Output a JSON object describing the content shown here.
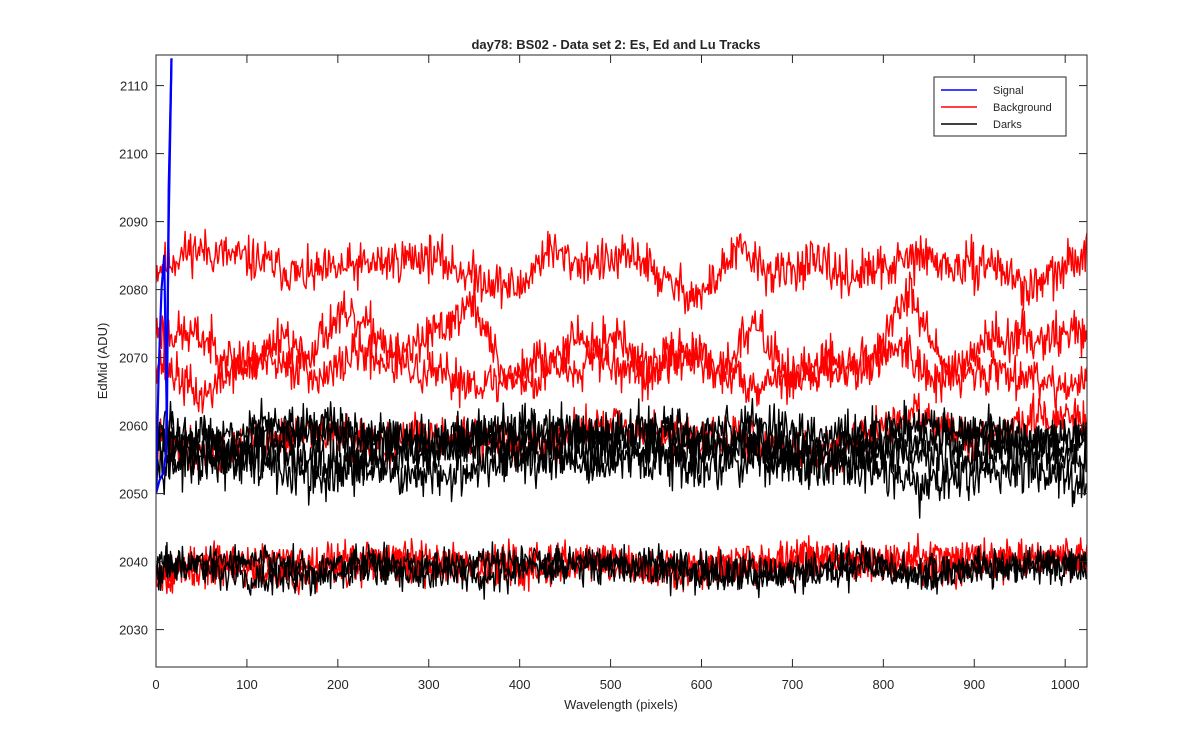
{
  "chart_data": {
    "type": "line",
    "title": "day78: BS02 - Data set 2: Es, Ed and Lu Tracks",
    "xlabel": "Wavelength (pixels)",
    "ylabel": "EdMid (ADU)",
    "xlim": [
      0,
      1024
    ],
    "ylim": [
      2024.5,
      2114.5
    ],
    "xticks": [
      0,
      100,
      200,
      300,
      400,
      500,
      600,
      700,
      800,
      900,
      1000
    ],
    "yticks": [
      2030,
      2040,
      2050,
      2060,
      2070,
      2080,
      2090,
      2100,
      2110
    ],
    "grid": false,
    "legend_position": "top-right",
    "legend": [
      {
        "label": "Signal",
        "color": "#0000ff"
      },
      {
        "label": "Background",
        "color": "#ff0000"
      },
      {
        "label": "Darks",
        "color": "#000000"
      }
    ],
    "series": [
      {
        "group": "Signal",
        "color": "#0000ff",
        "x": [
          0,
          3,
          6,
          9,
          12,
          14,
          17
        ],
        "y": [
          2051,
          2068,
          2080,
          2085,
          2060,
          2095,
          2114
        ]
      },
      {
        "group": "Signal",
        "color": "#0000ff",
        "x": [
          0,
          4,
          8,
          11,
          14,
          17
        ],
        "y": [
          2050,
          2052,
          2053,
          2056,
          2090,
          2114
        ]
      },
      {
        "group": "Background",
        "color": "#ff0000",
        "noise": 1.6,
        "seed": 11,
        "x": [
          0,
          40,
          80,
          120,
          160,
          200,
          250,
          300,
          350,
          400,
          430,
          460,
          500,
          530,
          560,
          600,
          640,
          680,
          720,
          760,
          800,
          840,
          880,
          920,
          960,
          1000,
          1024
        ],
        "y": [
          2083,
          2086,
          2085,
          2084,
          2082,
          2083,
          2084,
          2085,
          2082,
          2080,
          2086,
          2084,
          2084,
          2085,
          2081,
          2079,
          2086,
          2082,
          2084,
          2082,
          2083,
          2085,
          2083,
          2084,
          2080,
          2083,
          2086
        ]
      },
      {
        "group": "Background",
        "color": "#ff0000",
        "noise": 1.6,
        "seed": 23,
        "x": [
          0,
          50,
          100,
          140,
          180,
          220,
          260,
          300,
          350,
          380,
          420,
          460,
          500,
          540,
          580,
          620,
          660,
          700,
          740,
          780,
          830,
          870,
          920,
          970,
          1024
        ],
        "y": [
          2074,
          2073,
          2068,
          2074,
          2066,
          2071,
          2069,
          2073,
          2078,
          2068,
          2066,
          2074,
          2069,
          2067,
          2072,
          2068,
          2075,
          2066,
          2070,
          2068,
          2080,
          2068,
          2073,
          2073,
          2074
        ]
      },
      {
        "group": "Background",
        "color": "#ff0000",
        "noise": 1.6,
        "seed": 37,
        "x": [
          0,
          50,
          100,
          150,
          200,
          240,
          280,
          320,
          380,
          420,
          460,
          500,
          540,
          580,
          620,
          660,
          700,
          740,
          780,
          820,
          860,
          900,
          940,
          1000,
          1024
        ],
        "y": [
          2070,
          2064,
          2070,
          2068,
          2076,
          2074,
          2068,
          2067,
          2066,
          2070,
          2068,
          2074,
          2068,
          2070,
          2068,
          2066,
          2068,
          2068,
          2069,
          2072,
          2066,
          2068,
          2068,
          2066,
          2066
        ]
      },
      {
        "group": "Background",
        "color": "#ff0000",
        "noise": 1.5,
        "seed": 41,
        "x": [
          0,
          60,
          120,
          180,
          240,
          300,
          360,
          420,
          480,
          540,
          600,
          660,
          720,
          780,
          840,
          900,
          960,
          1024
        ],
        "y": [
          2058,
          2056,
          2058,
          2059,
          2057,
          2059,
          2058,
          2057,
          2060,
          2059,
          2058,
          2058,
          2056,
          2058,
          2062,
          2057,
          2061,
          2061
        ]
      },
      {
        "group": "Background",
        "color": "#ff0000",
        "noise": 1.3,
        "seed": 53,
        "x": [
          0,
          80,
          160,
          240,
          320,
          400,
          480,
          560,
          640,
          720,
          800,
          880,
          960,
          1024
        ],
        "y": [
          2039,
          2040,
          2040,
          2041,
          2040,
          2040,
          2040,
          2039,
          2040,
          2041,
          2040,
          2041,
          2041,
          2041
        ]
      },
      {
        "group": "Background",
        "color": "#ff0000",
        "noise": 1.3,
        "seed": 67,
        "x": [
          0,
          80,
          160,
          240,
          320,
          400,
          480,
          560,
          640,
          720,
          800,
          880,
          960,
          1024
        ],
        "y": [
          2038,
          2039,
          2038,
          2039,
          2040,
          2039,
          2040,
          2038,
          2039,
          2040,
          2040,
          2039,
          2040,
          2040
        ]
      },
      {
        "group": "Darks",
        "color": "#000000",
        "noise": 1.7,
        "seed": 71,
        "x": [
          0,
          60,
          120,
          180,
          240,
          300,
          360,
          420,
          480,
          540,
          600,
          660,
          720,
          780,
          840,
          900,
          960,
          1024
        ],
        "y": [
          2058,
          2057,
          2054,
          2052,
          2055,
          2056,
          2057,
          2055,
          2057,
          2055,
          2056,
          2057,
          2055,
          2054,
          2051,
          2053,
          2054,
          2052
        ]
      },
      {
        "group": "Darks",
        "color": "#000000",
        "noise": 1.7,
        "seed": 83,
        "x": [
          0,
          60,
          120,
          180,
          240,
          300,
          360,
          420,
          480,
          540,
          600,
          660,
          720,
          780,
          840,
          900,
          960,
          1024
        ],
        "y": [
          2057,
          2056,
          2058,
          2060,
          2058,
          2057,
          2058,
          2059,
          2058,
          2059,
          2057,
          2058,
          2056,
          2057,
          2058,
          2059,
          2057,
          2058
        ]
      },
      {
        "group": "Darks",
        "color": "#000000",
        "noise": 1.7,
        "seed": 97,
        "x": [
          0,
          60,
          120,
          180,
          240,
          300,
          360,
          420,
          480,
          540,
          600,
          660,
          720,
          780,
          840,
          900,
          960,
          1024
        ],
        "y": [
          2055,
          2054,
          2056,
          2055,
          2054,
          2052,
          2054,
          2056,
          2054,
          2055,
          2054,
          2055,
          2054,
          2056,
          2056,
          2055,
          2056,
          2055
        ]
      },
      {
        "group": "Darks",
        "color": "#000000",
        "noise": 1.7,
        "seed": 103,
        "x": [
          0,
          60,
          120,
          180,
          240,
          300,
          360,
          420,
          480,
          540,
          600,
          660,
          720,
          780,
          840,
          900,
          960,
          1024
        ],
        "y": [
          2059,
          2058,
          2060,
          2059,
          2058,
          2057,
          2059,
          2060,
          2059,
          2060,
          2059,
          2060,
          2058,
          2059,
          2060,
          2059,
          2058,
          2058
        ]
      },
      {
        "group": "Darks",
        "color": "#000000",
        "noise": 1.3,
        "seed": 109,
        "x": [
          0,
          60,
          120,
          180,
          240,
          300,
          360,
          420,
          480,
          540,
          600,
          660,
          720,
          780,
          840,
          900,
          960,
          1024
        ],
        "y": [
          2040,
          2039,
          2037,
          2038,
          2039,
          2039,
          2038,
          2039,
          2040,
          2039,
          2038,
          2039,
          2038,
          2039,
          2038,
          2039,
          2039,
          2040
        ]
      },
      {
        "group": "Darks",
        "color": "#000000",
        "noise": 1.3,
        "seed": 113,
        "x": [
          0,
          60,
          120,
          180,
          240,
          300,
          360,
          420,
          480,
          540,
          600,
          660,
          720,
          780,
          840,
          900,
          960,
          1024
        ],
        "y": [
          2039,
          2040,
          2040,
          2039,
          2040,
          2039,
          2040,
          2040,
          2039,
          2040,
          2039,
          2038,
          2039,
          2040,
          2038,
          2039,
          2039,
          2039
        ]
      }
    ]
  }
}
